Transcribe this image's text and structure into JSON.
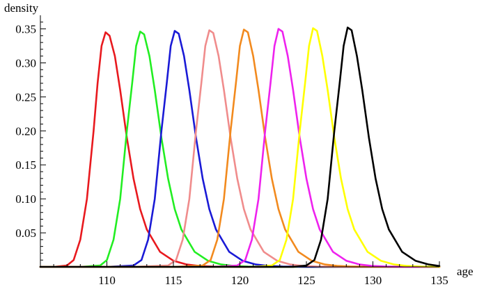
{
  "chart_data": {
    "type": "line",
    "title": "",
    "xlabel": "age",
    "ylabel": "density",
    "xlim": [
      105,
      135
    ],
    "ylim": [
      0,
      0.37
    ],
    "x_ticks": [
      {
        "value": 110,
        "label": "110"
      },
      {
        "value": 115,
        "label": "115"
      },
      {
        "value": 120,
        "label": "120"
      },
      {
        "value": 125,
        "label": "125"
      },
      {
        "value": 130,
        "label": "130"
      },
      {
        "value": 135,
        "label": "135"
      }
    ],
    "y_ticks": [
      {
        "value": 0.05,
        "label": "0.05"
      },
      {
        "value": 0.1,
        "label": "0.10"
      },
      {
        "value": 0.15,
        "label": "0.15"
      },
      {
        "value": 0.2,
        "label": "0.20"
      },
      {
        "value": 0.25,
        "label": "0.25"
      },
      {
        "value": 0.3,
        "label": "0.30"
      },
      {
        "value": 0.35,
        "label": "0.35"
      }
    ],
    "legend": "none",
    "grid": false,
    "series": [
      {
        "color": "#e8191e",
        "x": [
          105,
          106,
          107,
          107.5,
          108,
          108.5,
          109,
          109.3,
          109.6,
          109.9,
          110.2,
          110.6,
          111,
          111.5,
          112,
          112.5,
          113,
          114,
          115,
          116,
          117,
          118,
          120,
          123,
          127,
          135
        ],
        "y": [
          0,
          0,
          0.002,
          0.01,
          0.04,
          0.1,
          0.2,
          0.27,
          0.325,
          0.345,
          0.34,
          0.31,
          0.26,
          0.19,
          0.13,
          0.085,
          0.055,
          0.022,
          0.009,
          0.0035,
          0.0013,
          0.0005,
          0.0001,
          0,
          0,
          0
        ]
      },
      {
        "color": "#22ee22",
        "x": [
          105,
          108,
          109.5,
          110,
          110.5,
          111,
          111.5,
          111.9,
          112.2,
          112.5,
          112.8,
          113.2,
          113.6,
          114.1,
          114.6,
          115.1,
          115.6,
          116.6,
          117.6,
          118.6,
          119.6,
          120.6,
          122,
          125,
          130,
          135
        ],
        "y": [
          0,
          0,
          0.002,
          0.01,
          0.04,
          0.1,
          0.2,
          0.27,
          0.325,
          0.346,
          0.342,
          0.31,
          0.26,
          0.19,
          0.13,
          0.085,
          0.055,
          0.022,
          0.009,
          0.0035,
          0.0013,
          0.0005,
          0.0001,
          0,
          0,
          0
        ]
      },
      {
        "color": "#1a1ad6",
        "x": [
          105,
          110,
          112,
          112.6,
          113.1,
          113.6,
          114.1,
          114.5,
          114.8,
          115.1,
          115.4,
          115.8,
          116.2,
          116.7,
          117.2,
          117.7,
          118.2,
          119.2,
          120.2,
          121.2,
          122.2,
          123.2,
          125,
          128,
          132,
          135
        ],
        "y": [
          0,
          0,
          0.002,
          0.01,
          0.04,
          0.1,
          0.2,
          0.27,
          0.325,
          0.347,
          0.343,
          0.31,
          0.26,
          0.19,
          0.13,
          0.085,
          0.055,
          0.022,
          0.009,
          0.0035,
          0.0013,
          0.0005,
          0.0001,
          0,
          0,
          0
        ]
      },
      {
        "color": "#f08c8c",
        "x": [
          105,
          112,
          114.6,
          115.2,
          115.7,
          116.2,
          116.7,
          117.1,
          117.4,
          117.7,
          118,
          118.4,
          118.8,
          119.3,
          119.8,
          120.3,
          120.8,
          121.8,
          122.8,
          123.8,
          124.8,
          125.8,
          127.5,
          130,
          133,
          135
        ],
        "y": [
          0,
          0,
          0.002,
          0.01,
          0.04,
          0.1,
          0.2,
          0.27,
          0.325,
          0.348,
          0.344,
          0.31,
          0.26,
          0.19,
          0.13,
          0.085,
          0.055,
          0.022,
          0.009,
          0.0035,
          0.0013,
          0.0005,
          0.0001,
          0,
          0,
          0
        ]
      },
      {
        "color": "#f28a1e",
        "x": [
          105,
          115,
          117.2,
          117.8,
          118.3,
          118.8,
          119.3,
          119.7,
          120,
          120.3,
          120.6,
          121,
          121.4,
          121.9,
          122.4,
          122.9,
          123.4,
          124.4,
          125.4,
          126.4,
          127.4,
          128.4,
          130,
          132,
          134,
          135
        ],
        "y": [
          0,
          0,
          0.002,
          0.01,
          0.04,
          0.1,
          0.2,
          0.27,
          0.325,
          0.349,
          0.345,
          0.31,
          0.26,
          0.19,
          0.13,
          0.085,
          0.055,
          0.022,
          0.009,
          0.0035,
          0.0013,
          0.0005,
          0.0001,
          0,
          0,
          0
        ]
      },
      {
        "color": "#ee22ee",
        "x": [
          105,
          118,
          119.8,
          120.4,
          120.9,
          121.4,
          121.9,
          122.3,
          122.6,
          122.9,
          123.2,
          123.6,
          124,
          124.5,
          125,
          125.5,
          126,
          127,
          128,
          129,
          130,
          131,
          132.5,
          134,
          135
        ],
        "y": [
          0,
          0,
          0.002,
          0.01,
          0.04,
          0.1,
          0.2,
          0.27,
          0.325,
          0.35,
          0.346,
          0.31,
          0.26,
          0.19,
          0.13,
          0.085,
          0.055,
          0.022,
          0.009,
          0.0035,
          0.0013,
          0.0005,
          0.0001,
          0,
          0
        ]
      },
      {
        "color": "#ffff00",
        "x": [
          105,
          121,
          122.4,
          123,
          123.5,
          124,
          124.5,
          124.9,
          125.2,
          125.5,
          125.8,
          126.2,
          126.6,
          127.1,
          127.6,
          128.1,
          128.6,
          129.6,
          130.6,
          131.6,
          132.6,
          133.6,
          135
        ],
        "y": [
          0,
          0,
          0.002,
          0.01,
          0.04,
          0.1,
          0.2,
          0.27,
          0.325,
          0.351,
          0.347,
          0.31,
          0.26,
          0.19,
          0.13,
          0.085,
          0.055,
          0.022,
          0.009,
          0.0035,
          0.0013,
          0.0005,
          0.0001
        ]
      },
      {
        "color": "#000000",
        "x": [
          105,
          124,
          125,
          125.6,
          126.1,
          126.6,
          127.1,
          127.5,
          127.8,
          128.1,
          128.4,
          128.8,
          129.2,
          129.7,
          130.2,
          130.7,
          131.2,
          132.2,
          133.2,
          134.2,
          135
        ],
        "y": [
          0,
          0,
          0.002,
          0.01,
          0.04,
          0.1,
          0.2,
          0.27,
          0.325,
          0.352,
          0.348,
          0.31,
          0.26,
          0.19,
          0.13,
          0.085,
          0.055,
          0.022,
          0.009,
          0.0035,
          0.0013
        ]
      }
    ]
  }
}
